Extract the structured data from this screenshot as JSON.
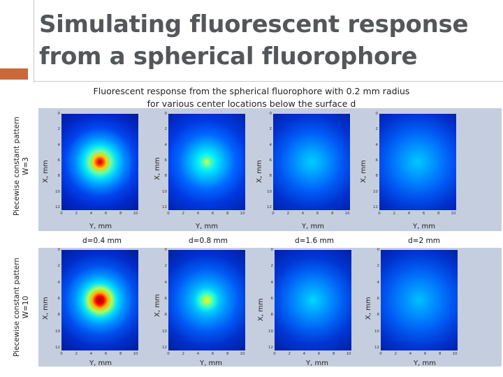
{
  "slide": {
    "title": "Simulating fluorescent response from a spherical fluorophore",
    "subtitle_line1": "Fluorescent response  from the spherical fluorophore with 0.2 mm radius",
    "subtitle_line2": "for various center locations below the surface d"
  },
  "rows": [
    {
      "label_line1": "Piecewise constant pattern",
      "label_line2": "W=3"
    },
    {
      "label_line1": "Piecewise constant pattern",
      "label_line2": "W=10"
    }
  ],
  "columns": [
    {
      "depth_label": "d=0.4 mm"
    },
    {
      "depth_label": "d=0.8 mm"
    },
    {
      "depth_label": "d=1.6 mm"
    },
    {
      "depth_label": "d=2 mm"
    }
  ],
  "axes": {
    "xlabel": "Y, mm",
    "ylabel": "X, mm",
    "x_ticks": [
      "0",
      "2",
      "4",
      "6",
      "8",
      "10"
    ],
    "y_ticks": [
      "0",
      "2",
      "4",
      "6",
      "8",
      "10",
      "12"
    ],
    "x_range": [
      0,
      10
    ],
    "y_range": [
      0,
      12
    ]
  },
  "panels": [
    {
      "row": "W=3",
      "depth": "d=0.4 mm",
      "peak_color": "#cc0000"
    },
    {
      "row": "W=3",
      "depth": "d=0.8 mm",
      "peak_color": "#e6ff40"
    },
    {
      "row": "W=3",
      "depth": "d=1.6 mm",
      "peak_color": "#00ccff"
    },
    {
      "row": "W=3",
      "depth": "d=2 mm",
      "peak_color": "#00c8ff"
    },
    {
      "row": "W=10",
      "depth": "d=0.4 mm",
      "peak_color": "#a00000"
    },
    {
      "row": "W=10",
      "depth": "d=0.8 mm",
      "peak_color": "#fff000"
    },
    {
      "row": "W=10",
      "depth": "d=1.6 mm",
      "peak_color": "#00d8ff"
    },
    {
      "row": "W=10",
      "depth": "d=2 mm",
      "peak_color": "#00c0ff"
    }
  ],
  "colors": {
    "accent": "#c9683c",
    "title": "#54575a",
    "band": "#c5cede"
  }
}
